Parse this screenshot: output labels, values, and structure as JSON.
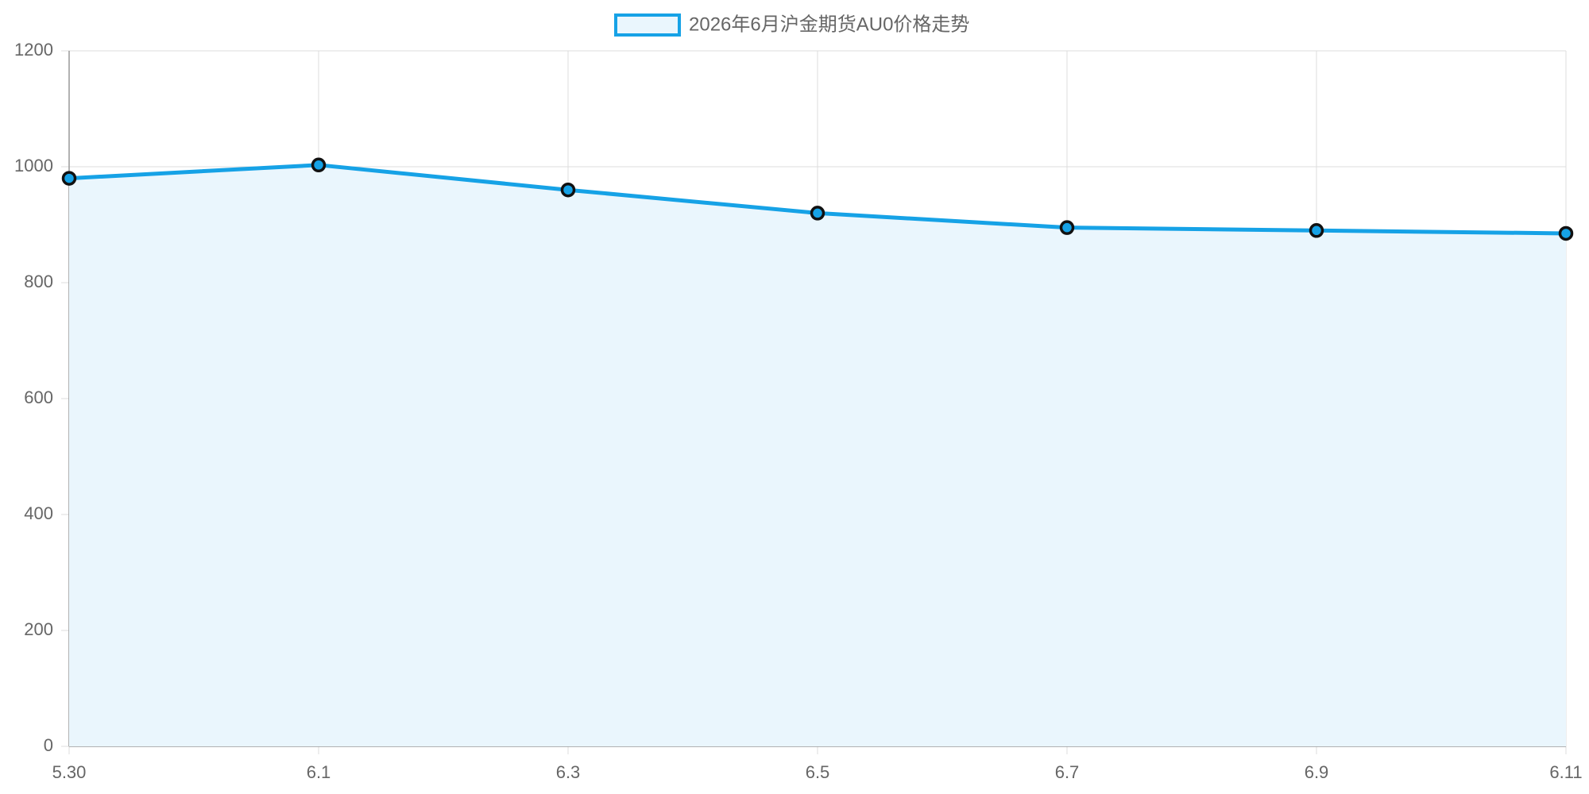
{
  "chart_data": {
    "type": "line",
    "categories": [
      "5.30",
      "6.1",
      "6.3",
      "6.5",
      "6.7",
      "6.9",
      "6.11"
    ],
    "series": [
      {
        "name": "2026年6月沪金期货AU0价格走势",
        "color": "#16a2e6",
        "fill_color": "#eaf6fd",
        "marker_edge_color": "#111111",
        "values": [
          980,
          1003,
          960,
          920,
          895,
          890,
          885
        ]
      }
    ],
    "ylim": [
      0,
      1200
    ],
    "yticks": [
      0,
      200,
      400,
      600,
      800,
      1000,
      1200
    ],
    "grid": true,
    "legend": "top"
  }
}
